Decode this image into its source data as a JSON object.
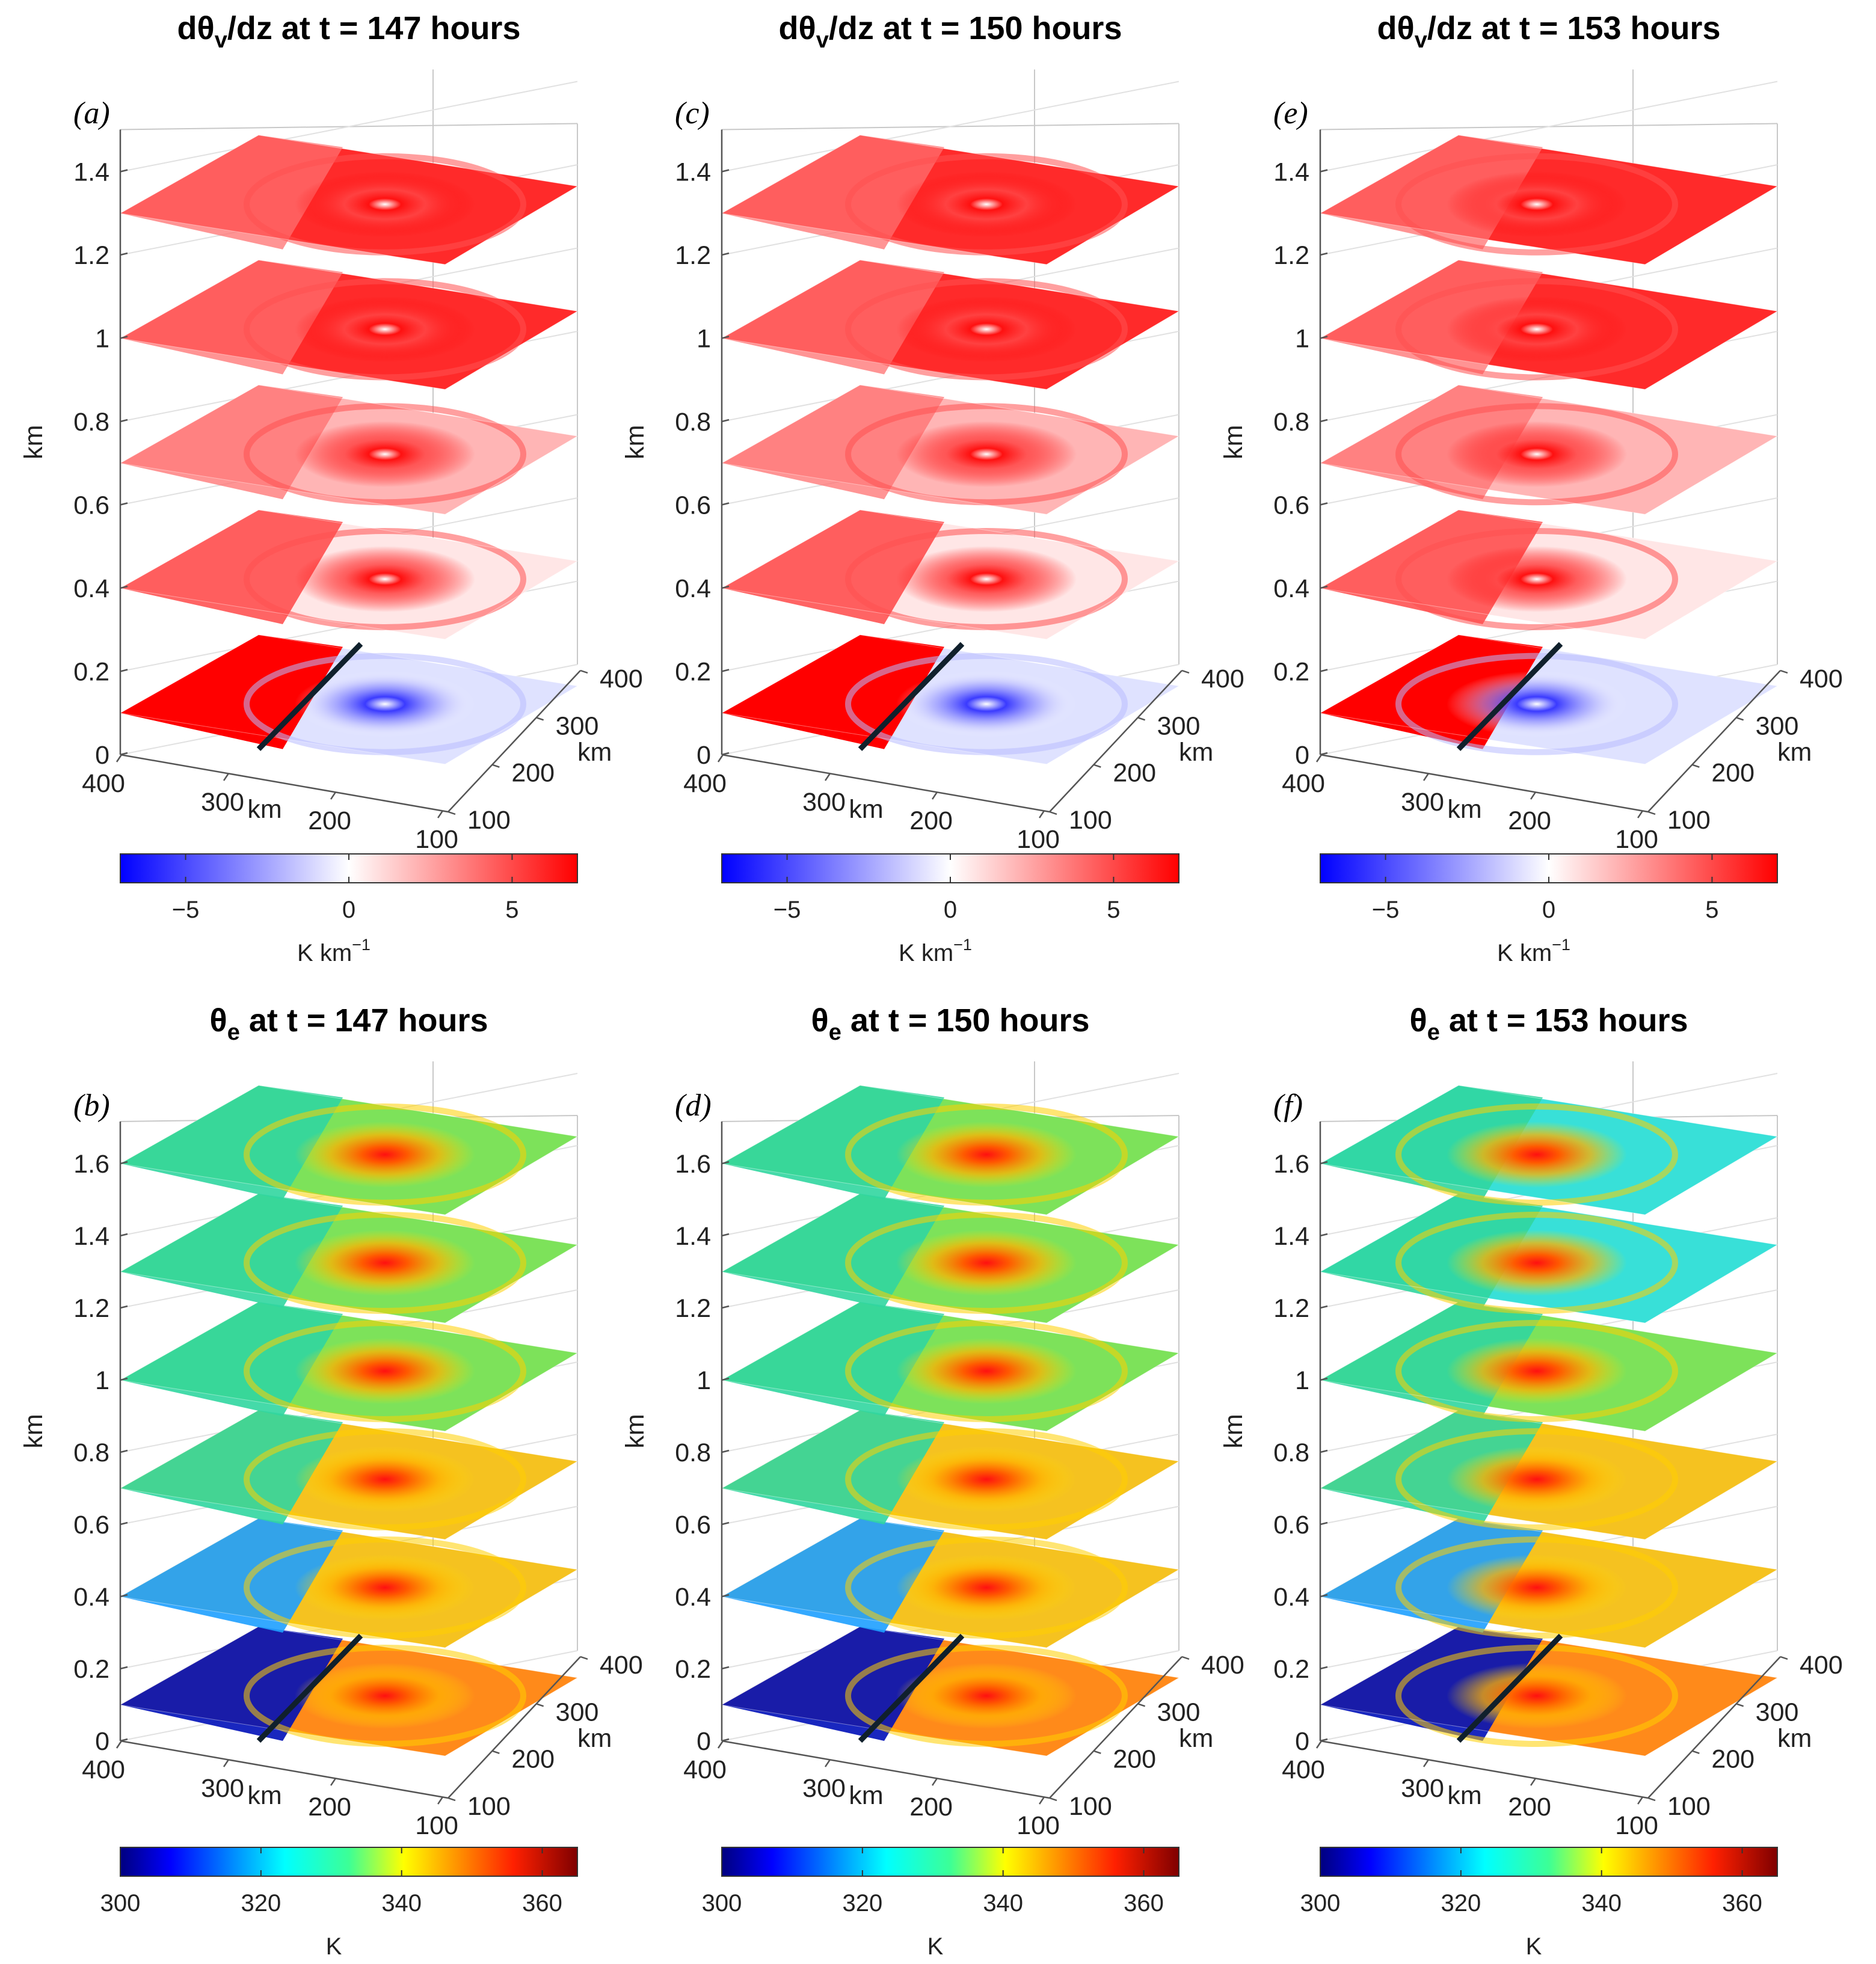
{
  "figure": {
    "rows": [
      {
        "variable": "dtheta_v_dz",
        "title_prefix": "dθ",
        "title_sub": "v",
        "title_suffix": "/dz at t = ",
        "colormap": "bwr",
        "zticks": [
          "0",
          "0.2",
          "0.4",
          "0.6",
          "0.8",
          "1",
          "1.2",
          "1.4"
        ],
        "zmax": 1.5,
        "layers_km": [
          0.1,
          0.4,
          0.7,
          1.0,
          1.3
        ],
        "colorbar": {
          "min": -7,
          "max": 7,
          "ticks": [
            {
              "label": "−5",
              "value": -5
            },
            {
              "label": "0",
              "value": 0
            },
            {
              "label": "5",
              "value": 5
            }
          ],
          "label": "K km",
          "label_sup": "−1"
        }
      },
      {
        "variable": "theta_e",
        "title_prefix": "θ",
        "title_sub": "e",
        "title_suffix": " at t = ",
        "colormap": "jet",
        "zticks": [
          "0",
          "0.2",
          "0.4",
          "0.6",
          "0.8",
          "1",
          "1.2",
          "1.4",
          "1.6"
        ],
        "zmax": 1.7,
        "layers_km": [
          0.1,
          0.4,
          0.7,
          1.0,
          1.3,
          1.6
        ],
        "colorbar": {
          "min": 300,
          "max": 365,
          "ticks": [
            {
              "label": "300",
              "value": 300
            },
            {
              "label": "320",
              "value": 320
            },
            {
              "label": "340",
              "value": 340
            },
            {
              "label": "360",
              "value": 360
            }
          ],
          "label": "K",
          "label_sup": ""
        }
      }
    ],
    "time_labels": [
      "147 hours",
      "150 hours",
      "153 hours"
    ],
    "panel_labels": [
      [
        "(a)",
        "(c)",
        "(e)"
      ],
      [
        "(b)",
        "(d)",
        "(f)"
      ]
    ],
    "z_axis_label": "km",
    "x_axis": {
      "label": "km",
      "ticks": [
        "400",
        "300",
        "200",
        "100"
      ]
    },
    "y_axis": {
      "label": "km",
      "ticks": [
        "100",
        "200",
        "300",
        "400"
      ]
    }
  },
  "chart_data": [
    {
      "type": "heatmap",
      "panel": "(a)",
      "title": "dθv/dz at t = 147 hours",
      "zlabel": "km",
      "xlabel": "km",
      "ylabel": "km",
      "x_ticks": [
        400,
        300,
        200,
        100
      ],
      "y_ticks": [
        100,
        200,
        300,
        400
      ],
      "z_ticks": [
        0,
        0.2,
        0.4,
        0.6,
        0.8,
        1,
        1.2,
        1.4
      ],
      "colorbar_range": [
        -7,
        7
      ],
      "colorbar_label": "K km−1"
    },
    {
      "type": "heatmap",
      "panel": "(c)",
      "title": "dθv/dz at t = 150 hours",
      "zlabel": "km",
      "xlabel": "km",
      "ylabel": "km",
      "x_ticks": [
        400,
        300,
        200,
        100
      ],
      "y_ticks": [
        100,
        200,
        300,
        400
      ],
      "z_ticks": [
        0,
        0.2,
        0.4,
        0.6,
        0.8,
        1,
        1.2,
        1.4
      ],
      "colorbar_range": [
        -7,
        7
      ],
      "colorbar_label": "K km−1"
    },
    {
      "type": "heatmap",
      "panel": "(e)",
      "title": "dθv/dz at t = 153 hours",
      "zlabel": "km",
      "xlabel": "km",
      "ylabel": "km",
      "x_ticks": [
        400,
        300,
        200,
        100
      ],
      "y_ticks": [
        100,
        200,
        300,
        400
      ],
      "z_ticks": [
        0,
        0.2,
        0.4,
        0.6,
        0.8,
        1,
        1.2,
        1.4
      ],
      "colorbar_range": [
        -7,
        7
      ],
      "colorbar_label": "K km−1"
    },
    {
      "type": "heatmap",
      "panel": "(b)",
      "title": "θe at t = 147 hours",
      "zlabel": "km",
      "xlabel": "km",
      "ylabel": "km",
      "x_ticks": [
        400,
        300,
        200,
        100
      ],
      "y_ticks": [
        100,
        200,
        300,
        400
      ],
      "z_ticks": [
        0,
        0.2,
        0.4,
        0.6,
        0.8,
        1,
        1.2,
        1.4,
        1.6
      ],
      "colorbar_range": [
        300,
        365
      ],
      "colorbar_label": "K"
    },
    {
      "type": "heatmap",
      "panel": "(d)",
      "title": "θe at t = 150 hours",
      "zlabel": "km",
      "xlabel": "km",
      "ylabel": "km",
      "x_ticks": [
        400,
        300,
        200,
        100
      ],
      "y_ticks": [
        100,
        200,
        300,
        400
      ],
      "z_ticks": [
        0,
        0.2,
        0.4,
        0.6,
        0.8,
        1,
        1.2,
        1.4,
        1.6
      ],
      "colorbar_range": [
        300,
        365
      ],
      "colorbar_label": "K"
    },
    {
      "type": "heatmap",
      "panel": "(f)",
      "title": "θe at t = 153 hours",
      "zlabel": "km",
      "xlabel": "km",
      "ylabel": "km",
      "x_ticks": [
        400,
        300,
        200,
        100
      ],
      "y_ticks": [
        100,
        200,
        300,
        400
      ],
      "z_ticks": [
        0,
        0.2,
        0.4,
        0.6,
        0.8,
        1,
        1.2,
        1.4,
        1.6
      ],
      "colorbar_range": [
        300,
        365
      ],
      "colorbar_label": "K"
    }
  ]
}
